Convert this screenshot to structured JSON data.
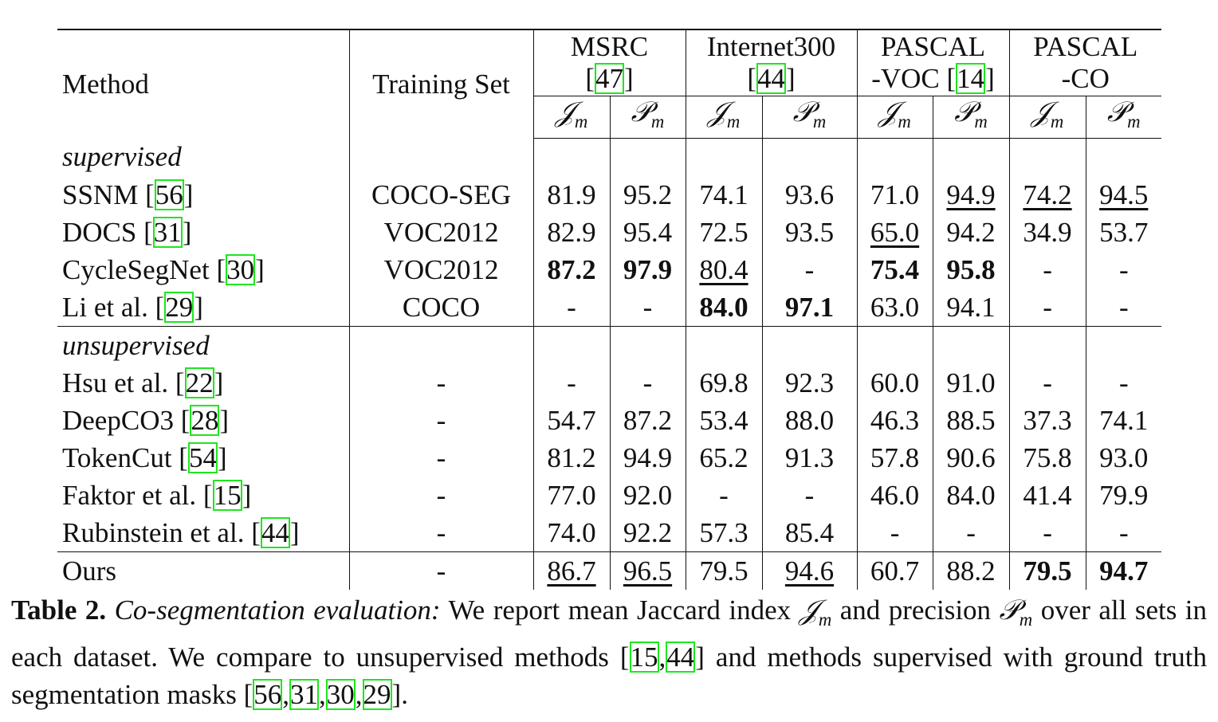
{
  "table": {
    "header": {
      "method": "Method",
      "training_set": "Training Set",
      "datasets": [
        {
          "line1": "MSRC",
          "ref": "47"
        },
        {
          "line1": "Internet300",
          "ref": "44"
        },
        {
          "line1": "PASCAL",
          "line2": "-VOC",
          "ref": "14"
        },
        {
          "line1": "PASCAL",
          "line2": "-CO"
        }
      ],
      "metrics": [
        {
          "symbol": "𝒥",
          "sub": "m"
        },
        {
          "symbol": "𝒫",
          "sub": "m"
        }
      ]
    },
    "cite_brackets": [
      "[",
      "]"
    ],
    "cite_separator": ",",
    "sections": [
      {
        "label": "supervised",
        "rows": [
          {
            "method": "SSNM",
            "ref": "56",
            "training_set": "COCO-SEG",
            "values": [
              "81.9",
              "95.2",
              "74.1",
              "93.6",
              "71.0",
              "94.9",
              "74.2",
              "94.5"
            ],
            "underline": [
              5,
              6,
              7
            ]
          },
          {
            "method": "DOCS",
            "ref": "31",
            "training_set": "VOC2012",
            "values": [
              "82.9",
              "95.4",
              "72.5",
              "93.5",
              "65.0",
              "94.2",
              "34.9",
              "53.7"
            ],
            "underline": [
              4
            ]
          },
          {
            "method": "CycleSegNet",
            "ref": "30",
            "training_set": "VOC2012",
            "values": [
              "87.2",
              "97.9",
              "80.4",
              "-",
              "75.4",
              "95.8",
              "-",
              "-"
            ],
            "bold": [
              0,
              1,
              4,
              5
            ],
            "underline": [
              2
            ]
          },
          {
            "method": "Li et al.",
            "ref": "29",
            "training_set": "COCO",
            "values": [
              "-",
              "-",
              "84.0",
              "97.1",
              "63.0",
              "94.1",
              "-",
              "-"
            ],
            "bold": [
              2,
              3
            ]
          }
        ]
      },
      {
        "label": "unsupervised",
        "rows": [
          {
            "method": "Hsu et al.",
            "ref": "22",
            "training_set": "-",
            "values": [
              "-",
              "-",
              "69.8",
              "92.3",
              "60.0",
              "91.0",
              "-",
              "-"
            ]
          },
          {
            "method": "DeepCO3",
            "ref": "28",
            "training_set": "-",
            "values": [
              "54.7",
              "87.2",
              "53.4",
              "88.0",
              "46.3",
              "88.5",
              "37.3",
              "74.1"
            ]
          },
          {
            "method": "TokenCut",
            "ref": "54",
            "training_set": "-",
            "values": [
              "81.2",
              "94.9",
              "65.2",
              "91.3",
              "57.8",
              "90.6",
              "75.8",
              "93.0"
            ]
          },
          {
            "method": "Faktor et al.",
            "ref": "15",
            "training_set": "-",
            "values": [
              "77.0",
              "92.0",
              "-",
              "-",
              "46.0",
              "84.0",
              "41.4",
              "79.9"
            ]
          },
          {
            "method": "Rubinstein et al.",
            "ref": "44",
            "training_set": "-",
            "values": [
              "74.0",
              "92.2",
              "57.3",
              "85.4",
              "-",
              "-",
              "-",
              "-"
            ]
          }
        ]
      },
      {
        "rows": [
          {
            "method": "Ours",
            "training_set": "-",
            "values": [
              "86.7",
              "96.5",
              "79.5",
              "94.6",
              "60.7",
              "88.2",
              "79.5",
              "94.7"
            ],
            "bold": [
              6,
              7
            ],
            "underline": [
              0,
              1,
              3
            ]
          }
        ]
      }
    ],
    "caption": {
      "label": "Table 2.",
      "heading": "Co-segmentation evaluation:",
      "parts": [
        "We report mean Jaccard index",
        {
          "symbol": "𝒥",
          "sub": "m"
        },
        "and precision",
        {
          "symbol": "𝒫",
          "sub": "m"
        },
        "over all sets in each dataset. We compare to unsupervised methods",
        {
          "refs": [
            "15",
            "44"
          ]
        },
        "and methods supervised with ground truth segmentation masks",
        {
          "refs": [
            "56",
            "31",
            "30",
            "29"
          ]
        },
        "."
      ]
    }
  }
}
